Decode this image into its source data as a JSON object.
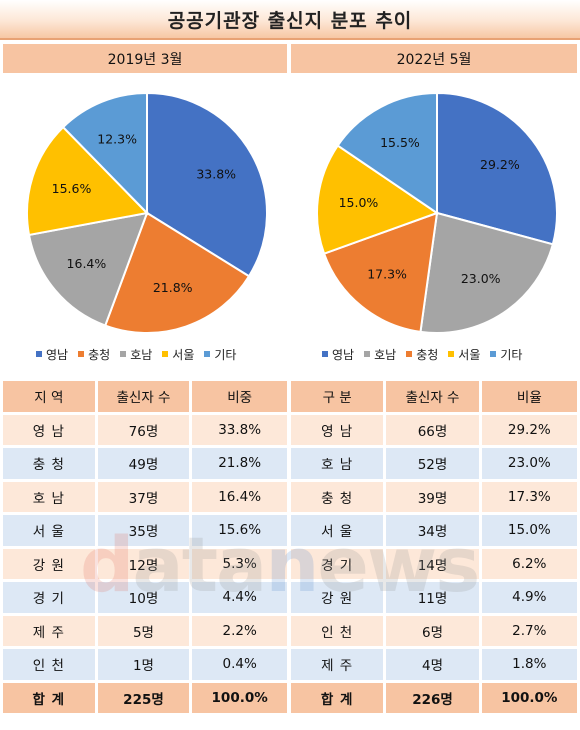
{
  "title": "공공기관장 출신지 분포 추이",
  "watermark": "datanews",
  "colors": {
    "영남": "#4472c4",
    "충청": "#ed7d31",
    "호남": "#a5a5a5",
    "서울": "#ffc000",
    "기타": "#5b9bd5"
  },
  "chart_data": [
    {
      "type": "pie",
      "title": "2019년 3월",
      "categories": [
        "영남",
        "충청",
        "호남",
        "서울",
        "기타"
      ],
      "values": [
        33.8,
        21.8,
        16.4,
        15.6,
        12.3
      ],
      "labels": [
        "33.8%",
        "21.8%",
        "16.4%",
        "15.6%",
        "12.3%"
      ],
      "legend": [
        "영남",
        "충청",
        "호남",
        "서울",
        "기타"
      ],
      "legend_position": "bottom"
    },
    {
      "type": "pie",
      "title": "2022년 5월",
      "categories": [
        "영남",
        "호남",
        "충청",
        "서울",
        "기타"
      ],
      "values": [
        29.2,
        23.0,
        17.3,
        15.0,
        15.5
      ],
      "labels": [
        "29.2%",
        "23.0%",
        "17.3%",
        "15.0%",
        "15.5%"
      ],
      "legend": [
        "영남",
        "호남",
        "충청",
        "서울",
        "기타"
      ],
      "legend_position": "bottom"
    }
  ],
  "tables": [
    {
      "headers": [
        "지 역",
        "출신자 수",
        "비중"
      ],
      "rows": [
        [
          "영 남",
          "76명",
          "33.8%"
        ],
        [
          "충 청",
          "49명",
          "21.8%"
        ],
        [
          "호 남",
          "37명",
          "16.4%"
        ],
        [
          "서 울",
          "35명",
          "15.6%"
        ],
        [
          "강 원",
          "12명",
          "5.3%"
        ],
        [
          "경 기",
          "10명",
          "4.4%"
        ],
        [
          "제 주",
          "5명",
          "2.2%"
        ],
        [
          "인 천",
          "1명",
          "0.4%"
        ]
      ],
      "total": [
        "합 계",
        "225명",
        "100.0%"
      ]
    },
    {
      "headers": [
        "구 분",
        "출신자 수",
        "비율"
      ],
      "rows": [
        [
          "영 남",
          "66명",
          "29.2%"
        ],
        [
          "호 남",
          "52명",
          "23.0%"
        ],
        [
          "충 청",
          "39명",
          "17.3%"
        ],
        [
          "서 울",
          "34명",
          "15.0%"
        ],
        [
          "경 기",
          "14명",
          "6.2%"
        ],
        [
          "강 원",
          "11명",
          "4.9%"
        ],
        [
          "인 천",
          "6명",
          "2.7%"
        ],
        [
          "제 주",
          "4명",
          "1.8%"
        ]
      ],
      "total": [
        "합 계",
        "226명",
        "100.0%"
      ]
    }
  ]
}
